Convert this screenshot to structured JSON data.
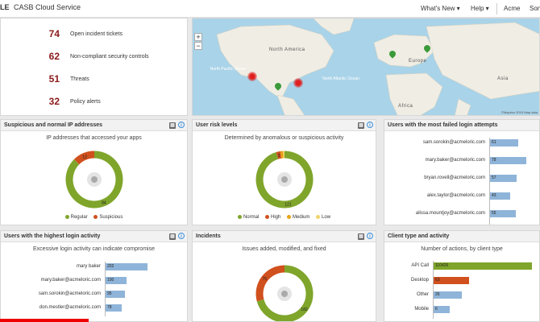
{
  "header": {
    "logo": "LE",
    "app_title": "CASB Cloud Service",
    "nav": [
      "What's New",
      "Help",
      "Acme",
      "Son"
    ]
  },
  "summary": [
    {
      "value": "74",
      "label": "Open incident tickets"
    },
    {
      "value": "62",
      "label": "Non-compliant security controls"
    },
    {
      "value": "51",
      "label": "Threats"
    },
    {
      "value": "32",
      "label": "Policy alerts"
    }
  ],
  "map": {
    "continents": [
      "North America",
      "Europe",
      "Asia",
      "Africa"
    ],
    "oceans": [
      "North Pacific Ocean",
      "North Atlantic Ocean"
    ],
    "attribution": "©Mapbox 2019 Map data",
    "zoom_in": "+",
    "zoom_out": "−"
  },
  "ip_panel": {
    "title": "Suspicious and normal IP addresses",
    "subtitle": "IP addresses that accessed your apps",
    "segments": [
      {
        "name": "Regular",
        "value": 84,
        "color": "#7fa52b"
      },
      {
        "name": "Suspicious",
        "value": 12,
        "color": "#d0501e"
      }
    ],
    "legend": [
      "Regular",
      "Suspicious"
    ]
  },
  "risk_panel": {
    "title": "User risk levels",
    "subtitle": "Determined by anomalous or suspicious activity",
    "segments": [
      {
        "name": "Normal",
        "value": 121,
        "color": "#7fa52b"
      },
      {
        "name": "High",
        "value": 3,
        "color": "#d0501e"
      },
      {
        "name": "Medium",
        "value": 2,
        "color": "#e8a317"
      },
      {
        "name": "Low",
        "value": 1,
        "color": "#f0d36a"
      }
    ],
    "label_values": [
      "121",
      "3"
    ],
    "legend": [
      "Normal",
      "High",
      "Medium",
      "Low"
    ]
  },
  "failed_panel": {
    "title": "Users with the most failed login attempts",
    "rows": [
      {
        "user": "sam.sorokin@acmeloric.com",
        "value": 61
      },
      {
        "user": "mary.baker@acmeloric.com",
        "value": 78
      },
      {
        "user": "bryan.rovell@acmeloric.com",
        "value": 57
      },
      {
        "user": "alex.taylor@acmeloric.com",
        "value": 43
      },
      {
        "user": "alissa.mountjoy@acmeloric.com",
        "value": 55
      }
    ]
  },
  "login_panel": {
    "title": "Users with the highest login activity",
    "subtitle": "Excessive login activity can indicate compromise",
    "rows": [
      {
        "user": "mary baker",
        "value": 202
      },
      {
        "user": "mary.baker@acmeloric.com",
        "value": 100
      },
      {
        "user": "sam.sorokin@acmeloric.com",
        "value": 95
      },
      {
        "user": "don.mestler@acmeloric.com",
        "value": 78
      }
    ]
  },
  "incidents_panel": {
    "title": "Incidents",
    "subtitle": "Issues added, modified, and fixed",
    "segments": [
      {
        "name": "Green",
        "value": 182,
        "color": "#7fa52b"
      },
      {
        "name": "Red",
        "value": 75,
        "color": "#d0501e"
      }
    ],
    "label_values": [
      "182",
      "75"
    ]
  },
  "client_panel": {
    "title": "Client type and activity",
    "subtitle": "Number of actions, by client type",
    "rows": [
      {
        "type": "API Call",
        "value": 110426,
        "label": "110426",
        "color": "#7fa52b"
      },
      {
        "type": "Desktop",
        "value": 63,
        "label": "63",
        "color": "#d0501e"
      },
      {
        "type": "Other",
        "value": 26,
        "label": "26",
        "color": "#8fb4d9"
      },
      {
        "type": "Mobile",
        "value": 6,
        "label": "6",
        "color": "#8fb4d9"
      }
    ]
  }
}
